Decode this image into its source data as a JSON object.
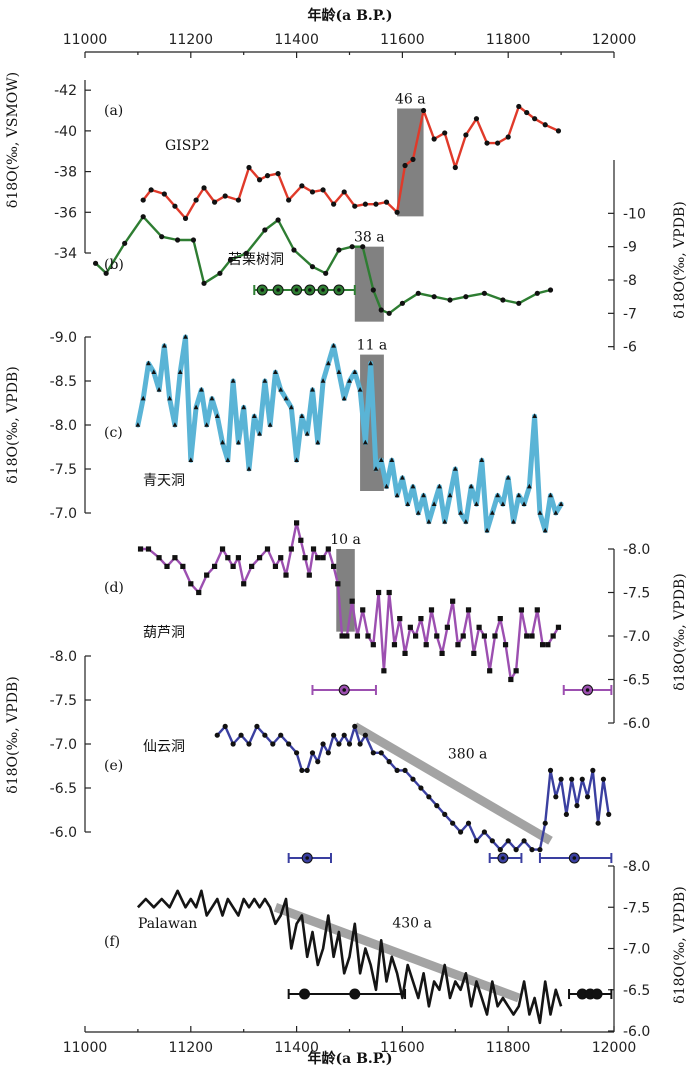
{
  "chart_data": {
    "type": "line",
    "x_axis": {
      "label_top": "年龄(a B.P.)",
      "label_bottom": "年龄(a B.P.)",
      "range": [
        11000,
        12000
      ],
      "ticks": [
        11000,
        11200,
        11400,
        11600,
        11800,
        12000
      ]
    },
    "axes": [
      {
        "id": "a_left",
        "label": "δ18O(‰, VSMOW)",
        "range": [
          -42.5,
          -34
        ],
        "ticks": [
          -34,
          -36,
          -38,
          -40,
          -42
        ],
        "tick_labels": [
          "-34",
          "-36",
          "-38",
          "-40",
          "-42"
        ]
      },
      {
        "id": "b_right",
        "label": "δ18O(‰, VPDB)",
        "range": [
          -11.6,
          -5.9
        ],
        "ticks": [
          -10,
          -9,
          -8,
          -7,
          -6
        ],
        "tick_labels": [
          "-10",
          "-9",
          "-8",
          "-7",
          "-6"
        ]
      },
      {
        "id": "c_left",
        "label": "δ18O(‰, VPDB)",
        "range": [
          -9.0,
          -7.0
        ],
        "ticks": [
          -9.0,
          -8.5,
          -8.0,
          -7.5,
          -7.0
        ],
        "tick_labels": [
          "-9.0",
          "-8.5",
          "-8.0",
          "-7.5",
          "-7.0"
        ]
      },
      {
        "id": "d_right",
        "label": "δ18O(‰, VPDB)",
        "range": [
          -8.0,
          -6.0
        ],
        "ticks": [
          -8.0,
          -7.5,
          -7.0,
          -6.5,
          -6.0
        ],
        "tick_labels": [
          "-8.0",
          "-7.5",
          "-7.0",
          "-6.5",
          "-6.0"
        ]
      },
      {
        "id": "e_left",
        "label": "δ18O(‰, VPDB)",
        "range": [
          -8.0,
          -6.0
        ],
        "ticks": [
          -8.0,
          -7.5,
          -7.0,
          -6.5,
          -6.0
        ],
        "tick_labels": [
          "-8.0",
          "-7.5",
          "-7.0",
          "-6.5",
          "-6.0"
        ]
      },
      {
        "id": "f_right",
        "label": "δ18O(‰, VPDB)",
        "range": [
          -8.0,
          -6.0
        ],
        "ticks": [
          -8.0,
          -7.5,
          -7.0,
          -6.5,
          -6.0
        ],
        "tick_labels": [
          "-8.0",
          "-7.5",
          "-7.0",
          "-6.5",
          "-6.0"
        ]
      }
    ],
    "series": [
      {
        "id": "a",
        "panel": "(a)",
        "name": "GISP2",
        "axis": "a_left",
        "color": "#e03a2a",
        "marker": "circle",
        "x": [
          11110,
          11125,
          11150,
          11170,
          11190,
          11210,
          11225,
          11245,
          11265,
          11290,
          11310,
          11330,
          11345,
          11365,
          11385,
          11410,
          11430,
          11450,
          11470,
          11490,
          11510,
          11530,
          11550,
          11570,
          11590,
          11605,
          11620,
          11640,
          11660,
          11680,
          11700,
          11720,
          11740,
          11760,
          11780,
          11800,
          11820,
          11835,
          11850,
          11870,
          11895
        ],
        "y": [
          -36.6,
          -37.1,
          -36.9,
          -36.3,
          -35.7,
          -36.6,
          -37.2,
          -36.5,
          -36.8,
          -36.6,
          -38.2,
          -37.6,
          -37.8,
          -37.9,
          -36.6,
          -37.3,
          -37.0,
          -37.1,
          -36.4,
          -37.0,
          -36.3,
          -36.4,
          -36.4,
          -36.5,
          -36.0,
          -38.3,
          -38.6,
          -41.0,
          -39.6,
          -39.9,
          -38.2,
          -39.8,
          -40.6,
          -39.4,
          -39.4,
          -39.7,
          -41.2,
          -40.9,
          -40.6,
          -40.3,
          -40.0
        ]
      },
      {
        "id": "b",
        "panel": "(b)",
        "name": "苦栗树洞",
        "axis": "b_right",
        "color": "#2e7d32",
        "marker": "circle",
        "x": [
          11020,
          11040,
          11075,
          11110,
          11145,
          11175,
          11205,
          11225,
          11255,
          11275,
          11305,
          11340,
          11365,
          11395,
          11430,
          11455,
          11480,
          11505,
          11525,
          11545,
          11560,
          11575,
          11600,
          11630,
          11660,
          11690,
          11720,
          11755,
          11790,
          11820,
          11855,
          11880
        ],
        "y": [
          -8.5,
          -8.2,
          -9.1,
          -9.9,
          -9.3,
          -9.2,
          -9.2,
          -7.9,
          -8.2,
          -8.6,
          -8.8,
          -9.5,
          -9.8,
          -8.9,
          -8.4,
          -8.2,
          -8.9,
          -9.0,
          -9.0,
          -7.7,
          -7.1,
          -7.0,
          -7.3,
          -7.6,
          -7.5,
          -7.4,
          -7.5,
          -7.6,
          -7.4,
          -7.3,
          -7.6,
          -7.7
        ]
      },
      {
        "id": "c",
        "panel": "(c)",
        "name": "青天洞",
        "axis": "c_left",
        "color": "#5ab4d6",
        "marker": "triangle",
        "x": [
          11100,
          11110,
          11120,
          11130,
          11140,
          11150,
          11160,
          11170,
          11180,
          11190,
          11200,
          11210,
          11220,
          11230,
          11240,
          11250,
          11260,
          11270,
          11280,
          11290,
          11300,
          11310,
          11320,
          11330,
          11340,
          11350,
          11360,
          11370,
          11380,
          11390,
          11400,
          11410,
          11420,
          11430,
          11440,
          11450,
          11460,
          11470,
          11480,
          11490,
          11500,
          11510,
          11520,
          11530,
          11540,
          11550,
          11560,
          11570,
          11580,
          11590,
          11600,
          11610,
          11620,
          11630,
          11640,
          11650,
          11660,
          11670,
          11680,
          11690,
          11700,
          11710,
          11720,
          11730,
          11740,
          11750,
          11760,
          11770,
          11780,
          11790,
          11800,
          11810,
          11820,
          11830,
          11840,
          11850,
          11860,
          11870,
          11880,
          11890,
          11900
        ],
        "y": [
          -8.0,
          -8.3,
          -8.7,
          -8.6,
          -8.4,
          -8.9,
          -8.3,
          -8.0,
          -8.6,
          -9.0,
          -7.6,
          -8.2,
          -8.4,
          -8.0,
          -8.3,
          -8.1,
          -7.8,
          -7.6,
          -8.5,
          -7.8,
          -8.2,
          -7.5,
          -8.1,
          -7.9,
          -8.5,
          -8.0,
          -8.6,
          -8.4,
          -8.3,
          -8.2,
          -7.6,
          -8.1,
          -7.9,
          -8.4,
          -7.8,
          -8.5,
          -8.7,
          -8.9,
          -8.6,
          -8.3,
          -8.5,
          -8.6,
          -8.4,
          -7.8,
          -8.7,
          -7.5,
          -7.6,
          -7.3,
          -7.6,
          -7.2,
          -7.4,
          -7.1,
          -7.3,
          -7.0,
          -7.2,
          -6.9,
          -7.1,
          -7.3,
          -6.9,
          -7.2,
          -7.5,
          -7.0,
          -6.9,
          -7.3,
          -7.1,
          -7.6,
          -6.8,
          -7.0,
          -7.2,
          -7.1,
          -7.4,
          -6.9,
          -7.2,
          -7.1,
          -7.3,
          -8.1,
          -7.0,
          -6.8,
          -7.2,
          -7.0,
          -7.1
        ]
      },
      {
        "id": "d",
        "panel": "(d)",
        "name": "葫芦洞",
        "axis": "d_right",
        "color": "#9c4fb0",
        "marker": "square",
        "x": [
          11105,
          11120,
          11140,
          11155,
          11170,
          11185,
          11200,
          11215,
          11230,
          11245,
          11260,
          11270,
          11280,
          11290,
          11300,
          11315,
          11330,
          11345,
          11360,
          11370,
          11380,
          11390,
          11400,
          11408,
          11416,
          11424,
          11432,
          11440,
          11450,
          11460,
          11470,
          11478,
          11486,
          11495,
          11505,
          11515,
          11525,
          11535,
          11545,
          11555,
          11565,
          11575,
          11585,
          11595,
          11605,
          11615,
          11625,
          11635,
          11645,
          11655,
          11665,
          11675,
          11685,
          11695,
          11705,
          11715,
          11725,
          11735,
          11745,
          11755,
          11765,
          11775,
          11785,
          11795,
          11805,
          11815,
          11825,
          11835,
          11845,
          11855,
          11865,
          11875,
          11885,
          11895
        ],
        "y": [
          -8.0,
          -8.0,
          -7.9,
          -7.8,
          -7.9,
          -7.8,
          -7.6,
          -7.5,
          -7.7,
          -7.8,
          -8.0,
          -7.9,
          -7.8,
          -7.9,
          -7.6,
          -7.8,
          -7.9,
          -8.0,
          -7.8,
          -7.9,
          -7.7,
          -8.0,
          -8.3,
          -8.1,
          -7.9,
          -7.7,
          -8.0,
          -7.9,
          -7.9,
          -8.0,
          -7.8,
          -7.6,
          -7.0,
          -7.0,
          -7.4,
          -7.0,
          -7.3,
          -7.0,
          -6.9,
          -7.5,
          -6.6,
          -7.5,
          -6.9,
          -7.2,
          -6.8,
          -7.1,
          -7.0,
          -7.2,
          -6.9,
          -7.3,
          -7.0,
          -6.8,
          -7.1,
          -7.4,
          -6.9,
          -7.0,
          -7.3,
          -6.8,
          -7.1,
          -7.0,
          -6.6,
          -7.0,
          -7.2,
          -6.9,
          -6.5,
          -6.6,
          -7.3,
          -7.0,
          -7.0,
          -7.3,
          -6.9,
          -6.9,
          -7.0,
          -7.1
        ]
      },
      {
        "id": "e",
        "panel": "(e)",
        "name": "仙云洞",
        "axis": "e_left",
        "color": "#3a3fa0",
        "marker": "circle",
        "x": [
          11250,
          11265,
          11280,
          11295,
          11310,
          11325,
          11340,
          11355,
          11370,
          11385,
          11400,
          11410,
          11420,
          11430,
          11440,
          11450,
          11460,
          11470,
          11480,
          11490,
          11500,
          11510,
          11520,
          11530,
          11545,
          11560,
          11575,
          11590,
          11605,
          11620,
          11635,
          11650,
          11665,
          11680,
          11695,
          11710,
          11725,
          11740,
          11755,
          11770,
          11785,
          11800,
          11815,
          11830,
          11845,
          11860,
          11870,
          11880,
          11890,
          11900,
          11910,
          11920,
          11930,
          11940,
          11950,
          11960,
          11970,
          11980,
          11990
        ],
        "y": [
          -7.1,
          -7.2,
          -7.0,
          -7.1,
          -7.0,
          -7.2,
          -7.1,
          -7.0,
          -7.1,
          -7.0,
          -6.9,
          -6.7,
          -6.7,
          -6.9,
          -6.8,
          -7.0,
          -6.9,
          -7.1,
          -7.0,
          -7.1,
          -7.0,
          -7.2,
          -7.0,
          -7.1,
          -6.9,
          -6.9,
          -6.8,
          -6.7,
          -6.7,
          -6.6,
          -6.5,
          -6.4,
          -6.3,
          -6.2,
          -6.1,
          -6.0,
          -6.1,
          -5.9,
          -6.0,
          -5.9,
          -5.8,
          -5.9,
          -5.8,
          -5.9,
          -5.8,
          -5.8,
          -6.1,
          -6.7,
          -6.4,
          -6.6,
          -6.2,
          -6.6,
          -6.3,
          -6.6,
          -6.4,
          -6.7,
          -6.1,
          -6.6,
          -6.2
        ]
      },
      {
        "id": "f",
        "panel": "(f)",
        "name": "Palawan",
        "axis": "f_right",
        "color": "#151515",
        "marker": "none",
        "x": [
          11100,
          11115,
          11130,
          11145,
          11160,
          11175,
          11190,
          11200,
          11210,
          11220,
          11230,
          11240,
          11250,
          11260,
          11270,
          11280,
          11290,
          11300,
          11310,
          11320,
          11330,
          11340,
          11350,
          11360,
          11370,
          11380,
          11390,
          11400,
          11410,
          11420,
          11430,
          11440,
          11450,
          11460,
          11470,
          11480,
          11490,
          11500,
          11510,
          11520,
          11530,
          11540,
          11550,
          11560,
          11570,
          11580,
          11590,
          11600,
          11610,
          11620,
          11630,
          11640,
          11650,
          11660,
          11670,
          11680,
          11690,
          11700,
          11710,
          11720,
          11730,
          11740,
          11750,
          11760,
          11770,
          11780,
          11790,
          11800,
          11810,
          11820,
          11830,
          11840,
          11850,
          11860,
          11870,
          11880,
          11890,
          11900
        ],
        "y": [
          -7.5,
          -7.6,
          -7.5,
          -7.6,
          -7.5,
          -7.7,
          -7.5,
          -7.6,
          -7.5,
          -7.7,
          -7.4,
          -7.5,
          -7.6,
          -7.4,
          -7.6,
          -7.5,
          -7.4,
          -7.6,
          -7.5,
          -7.6,
          -7.5,
          -7.6,
          -7.5,
          -7.3,
          -7.4,
          -7.6,
          -7.0,
          -7.3,
          -7.4,
          -6.9,
          -7.2,
          -6.8,
          -7.0,
          -7.4,
          -6.9,
          -7.2,
          -6.7,
          -6.9,
          -7.3,
          -6.7,
          -7.0,
          -6.8,
          -6.5,
          -7.1,
          -6.6,
          -6.9,
          -6.7,
          -6.4,
          -6.8,
          -6.6,
          -6.4,
          -6.7,
          -6.3,
          -6.6,
          -6.5,
          -6.8,
          -6.4,
          -6.6,
          -6.5,
          -6.7,
          -6.3,
          -6.6,
          -6.4,
          -6.2,
          -6.6,
          -6.3,
          -6.4,
          -6.3,
          -6.2,
          -6.3,
          -6.6,
          -6.2,
          -6.4,
          -6.1,
          -6.6,
          -6.2,
          -6.5,
          -6.3
        ]
      }
    ],
    "panel_labels": [
      "(a)",
      "(b)",
      "(c)",
      "(d)",
      "(e)",
      "(f)"
    ],
    "events": [
      {
        "label": "46 a",
        "axis": "a_left",
        "x_start": 11590,
        "x_end": 11640,
        "y_from": -41.1,
        "y_to": -35.8
      },
      {
        "label": "38 a",
        "axis": "b_right",
        "x_start": 11510,
        "x_end": 11565,
        "y_from": -6.75,
        "y_to": -9.0
      },
      {
        "label": "11 a",
        "axis": "c_left",
        "x_start": 11520,
        "x_end": 11565,
        "y_from": -7.25,
        "y_to": -8.8
      },
      {
        "label": "10 a",
        "axis": "d_right",
        "x_start": 11475,
        "x_end": 11510,
        "y_from": -8.0,
        "y_to": -7.05
      }
    ],
    "trends": [
      {
        "label": "380 a",
        "axis": "e_left",
        "x_start": 11510,
        "x_end": 11880,
        "y_start": -7.2,
        "y_end": -5.9
      },
      {
        "label": "430 a",
        "axis": "f_right",
        "x_start": 11360,
        "x_end": 11820,
        "y_start": -7.5,
        "y_end": -6.4
      }
    ],
    "error_bars": [
      {
        "series": "b",
        "x": 11380,
        "lo": 11320,
        "hi": 11510
      },
      {
        "series": "d",
        "x": 11490,
        "lo": 11430,
        "hi": 11550
      },
      {
        "series": "d",
        "x": 11950,
        "lo": 11905,
        "hi": 11995
      },
      {
        "series": "e",
        "x": 11420,
        "lo": 11385,
        "hi": 11465
      },
      {
        "series": "e",
        "x": 11790,
        "lo": 11765,
        "hi": 11825
      },
      {
        "series": "e",
        "x": 11925,
        "lo": 11860,
        "hi": 11995
      },
      {
        "series": "f",
        "x": 11470,
        "lo": 11385,
        "hi": 11605
      },
      {
        "series": "f",
        "x": 11955,
        "lo": 11915,
        "hi": 11995
      }
    ],
    "error_points": [
      {
        "series": "b",
        "x": [
          11335,
          11365,
          11400,
          11425,
          11450,
          11480
        ]
      },
      {
        "series": "d",
        "x": [
          11490
        ]
      },
      {
        "series": "d",
        "x": [
          11950
        ]
      },
      {
        "series": "e",
        "x": [
          11420
        ]
      },
      {
        "series": "e",
        "x": [
          11790
        ]
      },
      {
        "series": "e",
        "x": [
          11925
        ]
      },
      {
        "series": "f",
        "x": [
          11415,
          11510
        ]
      },
      {
        "series": "f",
        "x": [
          11940,
          11955,
          11968
        ]
      }
    ]
  }
}
